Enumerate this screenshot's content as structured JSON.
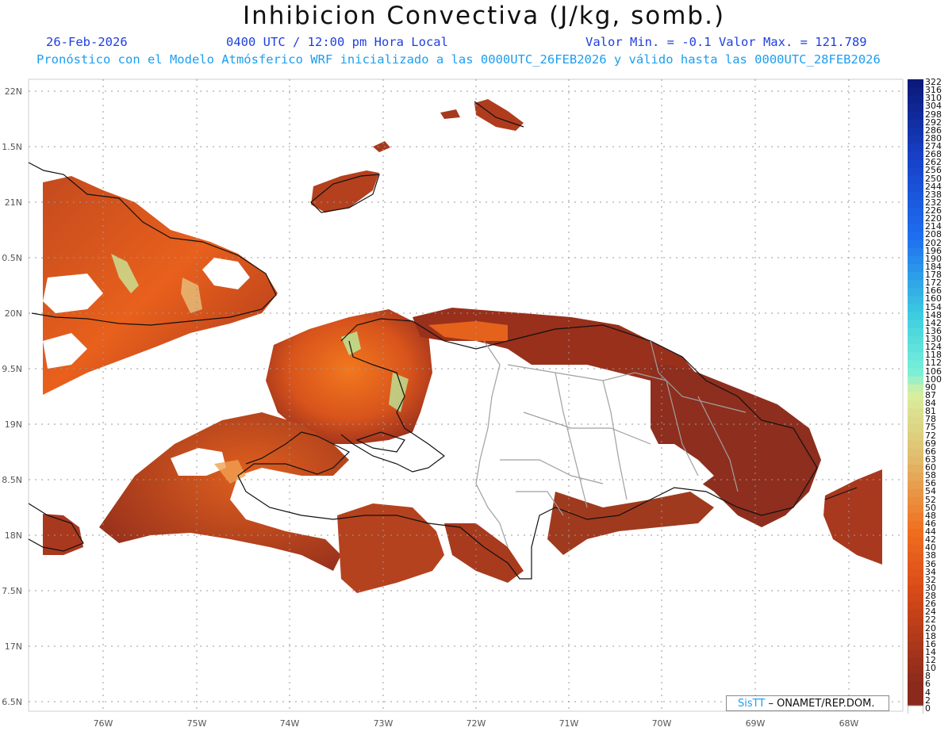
{
  "header": {
    "title": "Inhibicion Convectiva (J/kg, somb.)",
    "date": "26-Feb-2026",
    "time": "0400 UTC / 12:00 pm Hora Local",
    "minmax": "Valor Min. = -0.1  Valor Max. = 121.789",
    "description": "Pronóstico con el Modelo Atmósferico WRF inicializado a las 0000UTC_26FEB2026 y válido hasta las  0000UTC_28FEB2026"
  },
  "axes": {
    "lat_labels": [
      "22N",
      "1.5N",
      "21N",
      "0.5N",
      "20N",
      "9.5N",
      "19N",
      "8.5N",
      "18N",
      "7.5N",
      "17N",
      "6.5N"
    ],
    "lon_labels": [
      "76W",
      "75W",
      "74W",
      "73W",
      "72W",
      "71W",
      "70W",
      "69W",
      "68W"
    ]
  },
  "colorbar": {
    "labels": [
      "322",
      "316",
      "310",
      "304",
      "298",
      "292",
      "286",
      "280",
      "274",
      "268",
      "262",
      "256",
      "250",
      "244",
      "238",
      "232",
      "226",
      "220",
      "214",
      "208",
      "202",
      "196",
      "190",
      "184",
      "178",
      "172",
      "166",
      "160",
      "154",
      "148",
      "142",
      "136",
      "130",
      "124",
      "118",
      "112",
      "106",
      "100",
      "90",
      "87",
      "84",
      "81",
      "78",
      "75",
      "72",
      "69",
      "66",
      "63",
      "60",
      "58",
      "56",
      "54",
      "52",
      "50",
      "48",
      "46",
      "44",
      "42",
      "40",
      "38",
      "36",
      "34",
      "32",
      "30",
      "28",
      "26",
      "24",
      "22",
      "20",
      "18",
      "16",
      "14",
      "12",
      "10",
      "8",
      "6",
      "4",
      "2",
      "0"
    ],
    "colors": {
      "top": "#0a1a7a",
      "blue_mid": "#1e6ff0",
      "cyan": "#3fd0e0",
      "aqua": "#7ef0d8",
      "pale_green": "#d8f0a0",
      "tan": "#e0c070",
      "orange": "#f07020",
      "red_orange": "#d84a18",
      "brown": "#8a2a1c",
      "zero": "#ffffff"
    }
  },
  "map_colors": {
    "field_dark": "#8e2e1e",
    "field_mid": "#c8481e",
    "field_bright": "#f06a1c",
    "field_hot": "#ff8a30",
    "field_pale": "#b8f0a0",
    "coast": "#111111",
    "border": "#a0a0a0",
    "grid": "#9a9a9a"
  },
  "credit": {
    "brand": "SisTT",
    "org": "– ONAMET/REP.DOM."
  }
}
